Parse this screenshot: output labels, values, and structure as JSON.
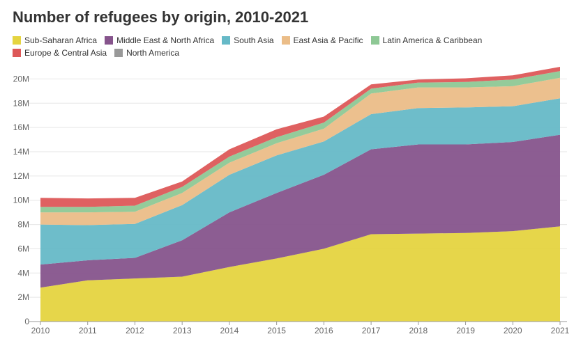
{
  "chart_data": {
    "type": "area",
    "stacked": true,
    "title": "Number of refugees by origin, 2010-2021",
    "xlabel": "",
    "ylabel": "",
    "categories": [
      "2010",
      "2011",
      "2012",
      "2013",
      "2014",
      "2015",
      "2016",
      "2017",
      "2018",
      "2019",
      "2020",
      "2021"
    ],
    "ylim": [
      0,
      21000000
    ],
    "yticks": [
      0,
      2000000,
      4000000,
      6000000,
      8000000,
      10000000,
      12000000,
      14000000,
      16000000,
      18000000,
      20000000
    ],
    "ytick_labels": [
      "0",
      "2M",
      "4M",
      "6M",
      "8M",
      "10M",
      "12M",
      "14M",
      "16M",
      "18M",
      "20M"
    ],
    "grid": true,
    "legend_position": "top-left",
    "series": [
      {
        "name": "Sub-Saharan Africa",
        "color": "#e5d440",
        "values": [
          2800000,
          3400000,
          3550000,
          3700000,
          4500000,
          5200000,
          6000000,
          7200000,
          7250000,
          7300000,
          7450000,
          7850000
        ]
      },
      {
        "name": "Middle East & North Africa",
        "color": "#86548c",
        "values": [
          1900000,
          1650000,
          1700000,
          3000000,
          4500000,
          5400000,
          6100000,
          7000000,
          7350000,
          7300000,
          7350000,
          7550000
        ]
      },
      {
        "name": "South Asia",
        "color": "#66b9c7",
        "values": [
          3300000,
          2900000,
          2800000,
          2900000,
          3100000,
          3100000,
          2750000,
          2900000,
          3000000,
          3050000,
          2950000,
          3000000
        ]
      },
      {
        "name": "East Asia & Pacific",
        "color": "#ebbd88",
        "values": [
          1000000,
          1050000,
          1000000,
          1000000,
          1000000,
          1000000,
          1050000,
          1700000,
          1700000,
          1650000,
          1650000,
          1700000
        ]
      },
      {
        "name": "Latin America & Caribbean",
        "color": "#8ec895",
        "values": [
          450000,
          450000,
          500000,
          500000,
          500000,
          500000,
          500000,
          400000,
          400000,
          450000,
          550000,
          550000
        ]
      },
      {
        "name": "Europe & Central Asia",
        "color": "#dd5858",
        "values": [
          750000,
          700000,
          650000,
          450000,
          600000,
          650000,
          500000,
          350000,
          250000,
          300000,
          350000,
          350000
        ]
      },
      {
        "name": "North America",
        "color": "#999999",
        "values": [
          0,
          0,
          0,
          0,
          0,
          0,
          0,
          0,
          0,
          0,
          0,
          0
        ]
      }
    ]
  }
}
